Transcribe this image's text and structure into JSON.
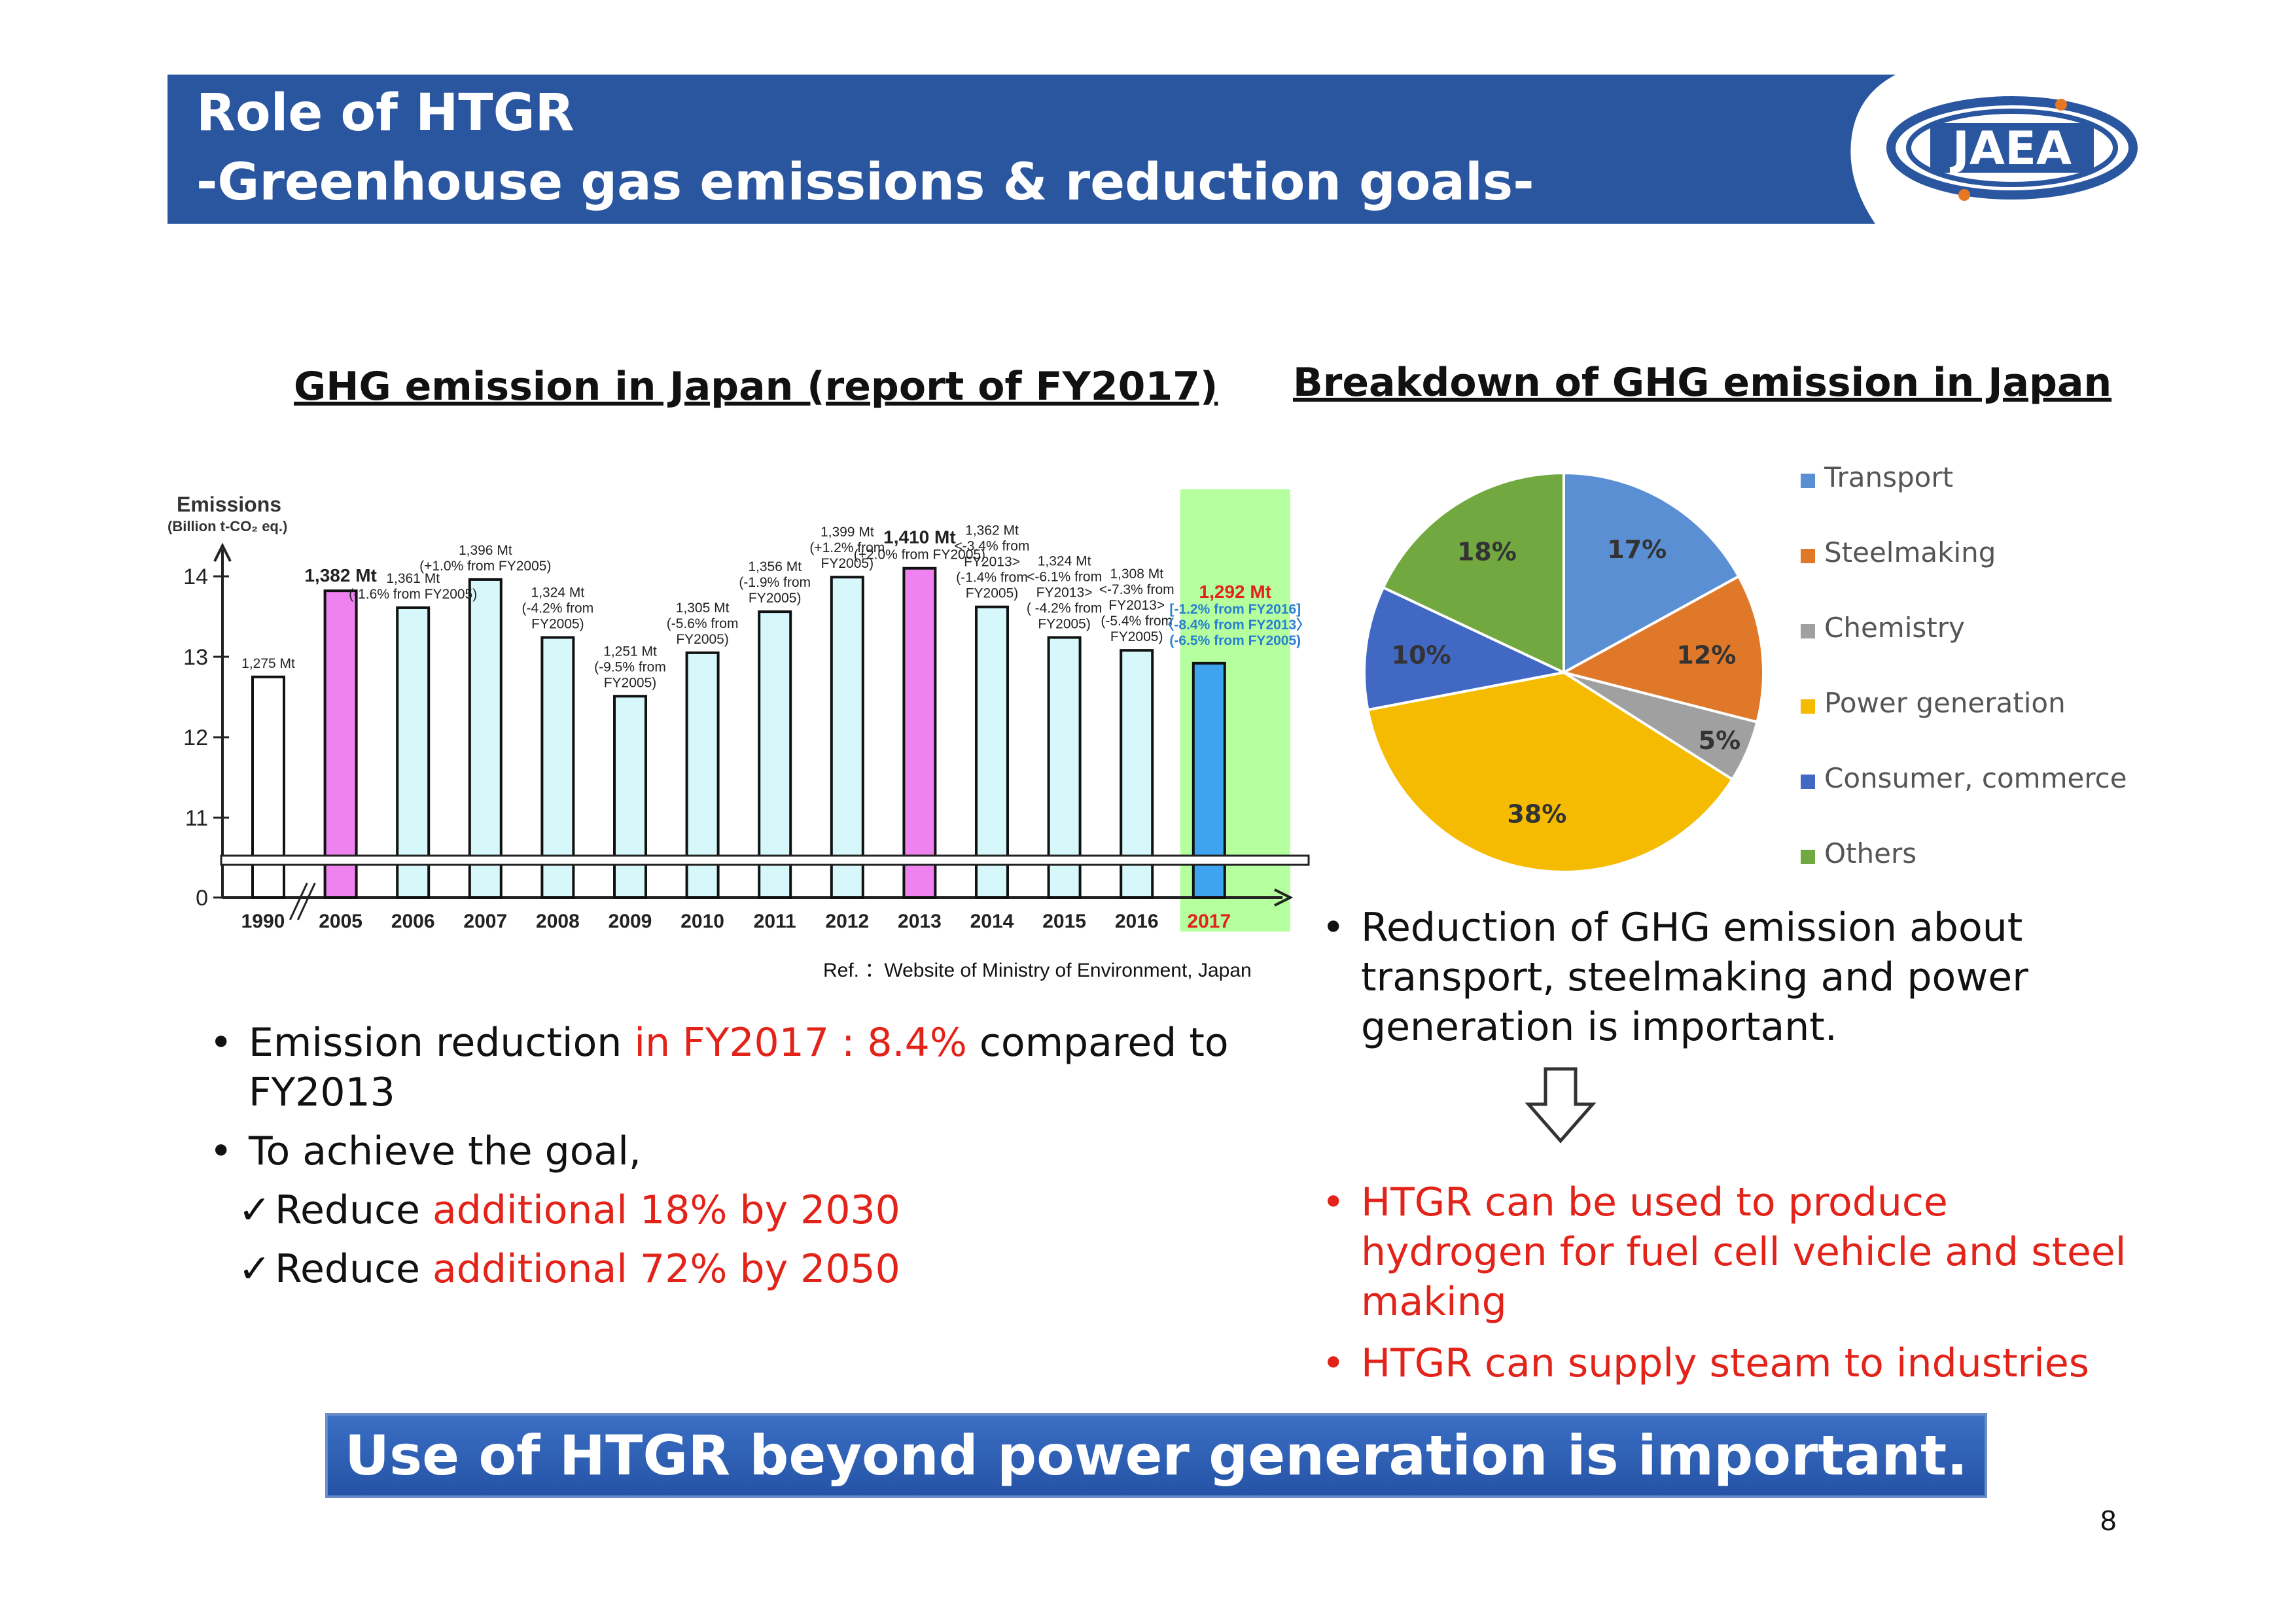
{
  "header": {
    "title_line1": "Role of HTGR",
    "title_line2": "-Greenhouse gas emissions & reduction goals-",
    "logo_text": "JAEA"
  },
  "bar_section": {
    "title": "GHG emission in Japan (report of FY2017)",
    "ref": "Ref. ：Website of Ministry of Environment, Japan"
  },
  "pie_section": {
    "title": "Breakdown of GHG emission in Japan"
  },
  "left_bullets": {
    "b1_pre": "Emission reduction ",
    "b1_red": "in FY2017 : 8.4%",
    "b1_post": " compared to FY2013",
    "b2": "To achieve the goal,",
    "c1_pre": "Reduce ",
    "c1_red": "additional 18% by 2030",
    "c2_pre": "Reduce ",
    "c2_red": "additional 72% by 2050"
  },
  "right_bullets": {
    "b1": "Reduction of GHG emission about transport, steelmaking and power generation is important.",
    "b2": "HTGR can be used to produce hydrogen for fuel cell vehicle and steel making",
    "b3": "HTGR can supply steam to industries"
  },
  "conclusion": "Use of HTGR beyond power generation is important.",
  "page_number": "8",
  "colors": {
    "header_bg": "#2a56a0",
    "accent_red": "#e2231a",
    "bar_cyan": "#d6f8fa",
    "bar_magenta": "#ee82ee",
    "bar_2017": "#3fa4ef",
    "highlight_green": "#b6ff9e"
  },
  "chart_data": [
    {
      "type": "bar",
      "ylabel": "Emissions",
      "ylabel_unit": "(Billion t-CO₂ eq.)",
      "yticks": [
        "0",
        "11",
        "12",
        "13",
        "14"
      ],
      "ylim": [
        11,
        14.4
      ],
      "axis_break": true,
      "categories": [
        "1990",
        "2005",
        "2006",
        "2007",
        "2008",
        "2009",
        "2010",
        "2011",
        "2012",
        "2013",
        "2014",
        "2015",
        "2016",
        "2017"
      ],
      "values": [
        12.75,
        13.82,
        13.61,
        13.96,
        13.24,
        12.51,
        13.05,
        13.56,
        13.99,
        14.1,
        13.62,
        13.24,
        13.08,
        12.92
      ],
      "bar_colors": [
        "white",
        "magenta",
        "cyan",
        "cyan",
        "cyan",
        "cyan",
        "cyan",
        "cyan",
        "cyan",
        "magenta",
        "cyan",
        "cyan",
        "cyan",
        "blue"
      ],
      "annotations": [
        [
          "1,275 Mt"
        ],
        [
          "1,382 Mt"
        ],
        [
          "1,361 Mt",
          "(-1.6% from FY2005)"
        ],
        [
          "1,396 Mt",
          "(+1.0% from FY2005)"
        ],
        [
          "1,324 Mt",
          "(-4.2% from",
          "FY2005)"
        ],
        [
          "1,251 Mt",
          "(-9.5% from",
          "FY2005)"
        ],
        [
          "1,305 Mt",
          "(-5.6% from",
          "FY2005)"
        ],
        [
          "1,356 Mt",
          "(-1.9% from",
          "FY2005)"
        ],
        [
          "1,399 Mt",
          "(+1.2% from",
          "FY2005)"
        ],
        [
          "1,410 Mt",
          "(+2.0% from FY2005)"
        ],
        [
          "1,362 Mt",
          "<-3.4% from",
          "FY2013>",
          "(-1.4% from",
          "FY2005)"
        ],
        [
          "1,324 Mt",
          "<-6.1% from",
          "FY2013>",
          "( -4.2% from",
          "FY2005)"
        ],
        [
          "1,308 Mt",
          "<-7.3% from",
          "FY2013>",
          "(-5.4% from",
          "FY2005)"
        ],
        [
          "1,292 Mt",
          "[-1.2% from FY2016]",
          "〈-8.4% from FY2013〉",
          "(-6.5% from FY2005)"
        ]
      ]
    },
    {
      "type": "pie",
      "labels": [
        "Transport",
        "Steelmaking",
        "Chemistry",
        "Power generation",
        "Consumer, commerce",
        "Others"
      ],
      "values": [
        17,
        12,
        5,
        38,
        10,
        18
      ],
      "value_labels": [
        "17%",
        "12%",
        "5%",
        "38%",
        "10%",
        "18%"
      ],
      "colors": [
        "#5b8fd4",
        "#e07829",
        "#a0a0a0",
        "#f5bb00",
        "#4169c4",
        "#72a840"
      ],
      "legend": "right"
    }
  ]
}
